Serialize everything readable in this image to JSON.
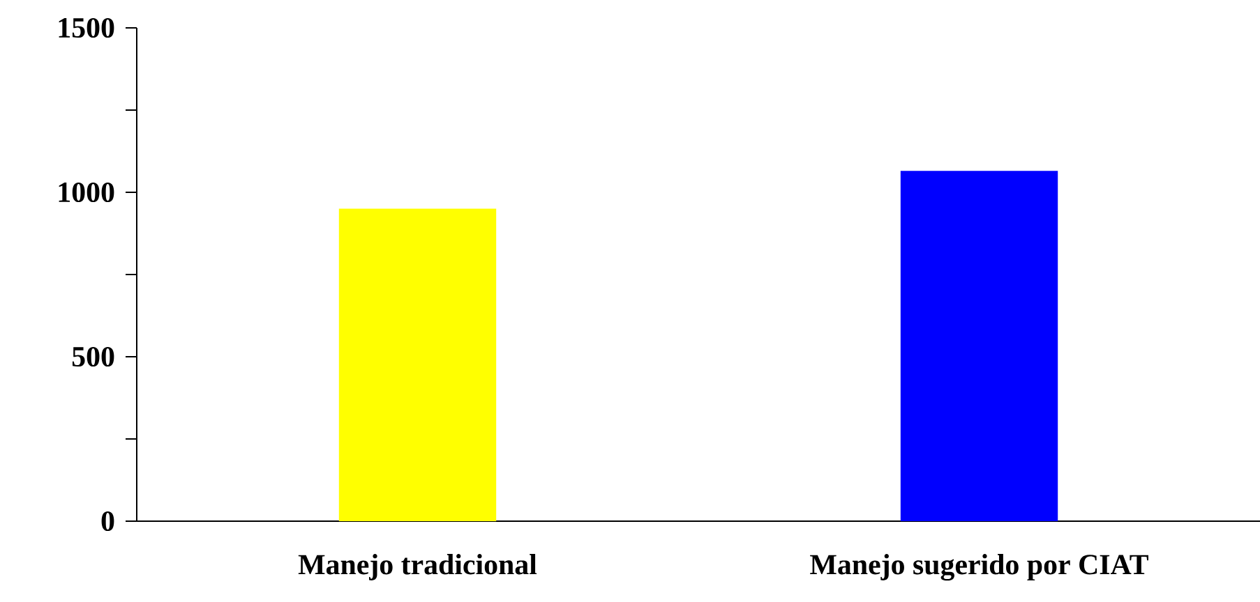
{
  "chart_data": {
    "type": "bar",
    "categories": [
      "Manejo tradicional",
      "Manejo sugerido por CIAT"
    ],
    "values": [
      950,
      1065
    ],
    "colors": [
      "#ffff00",
      "#0000ff"
    ],
    "ylim": [
      0,
      1500
    ],
    "yticks": [
      0,
      {
        "value": 250,
        "label": null
      },
      500,
      {
        "value": 750,
        "label": null
      },
      1000,
      {
        "value": 1250,
        "label": null
      },
      1500
    ],
    "grid": false
  }
}
